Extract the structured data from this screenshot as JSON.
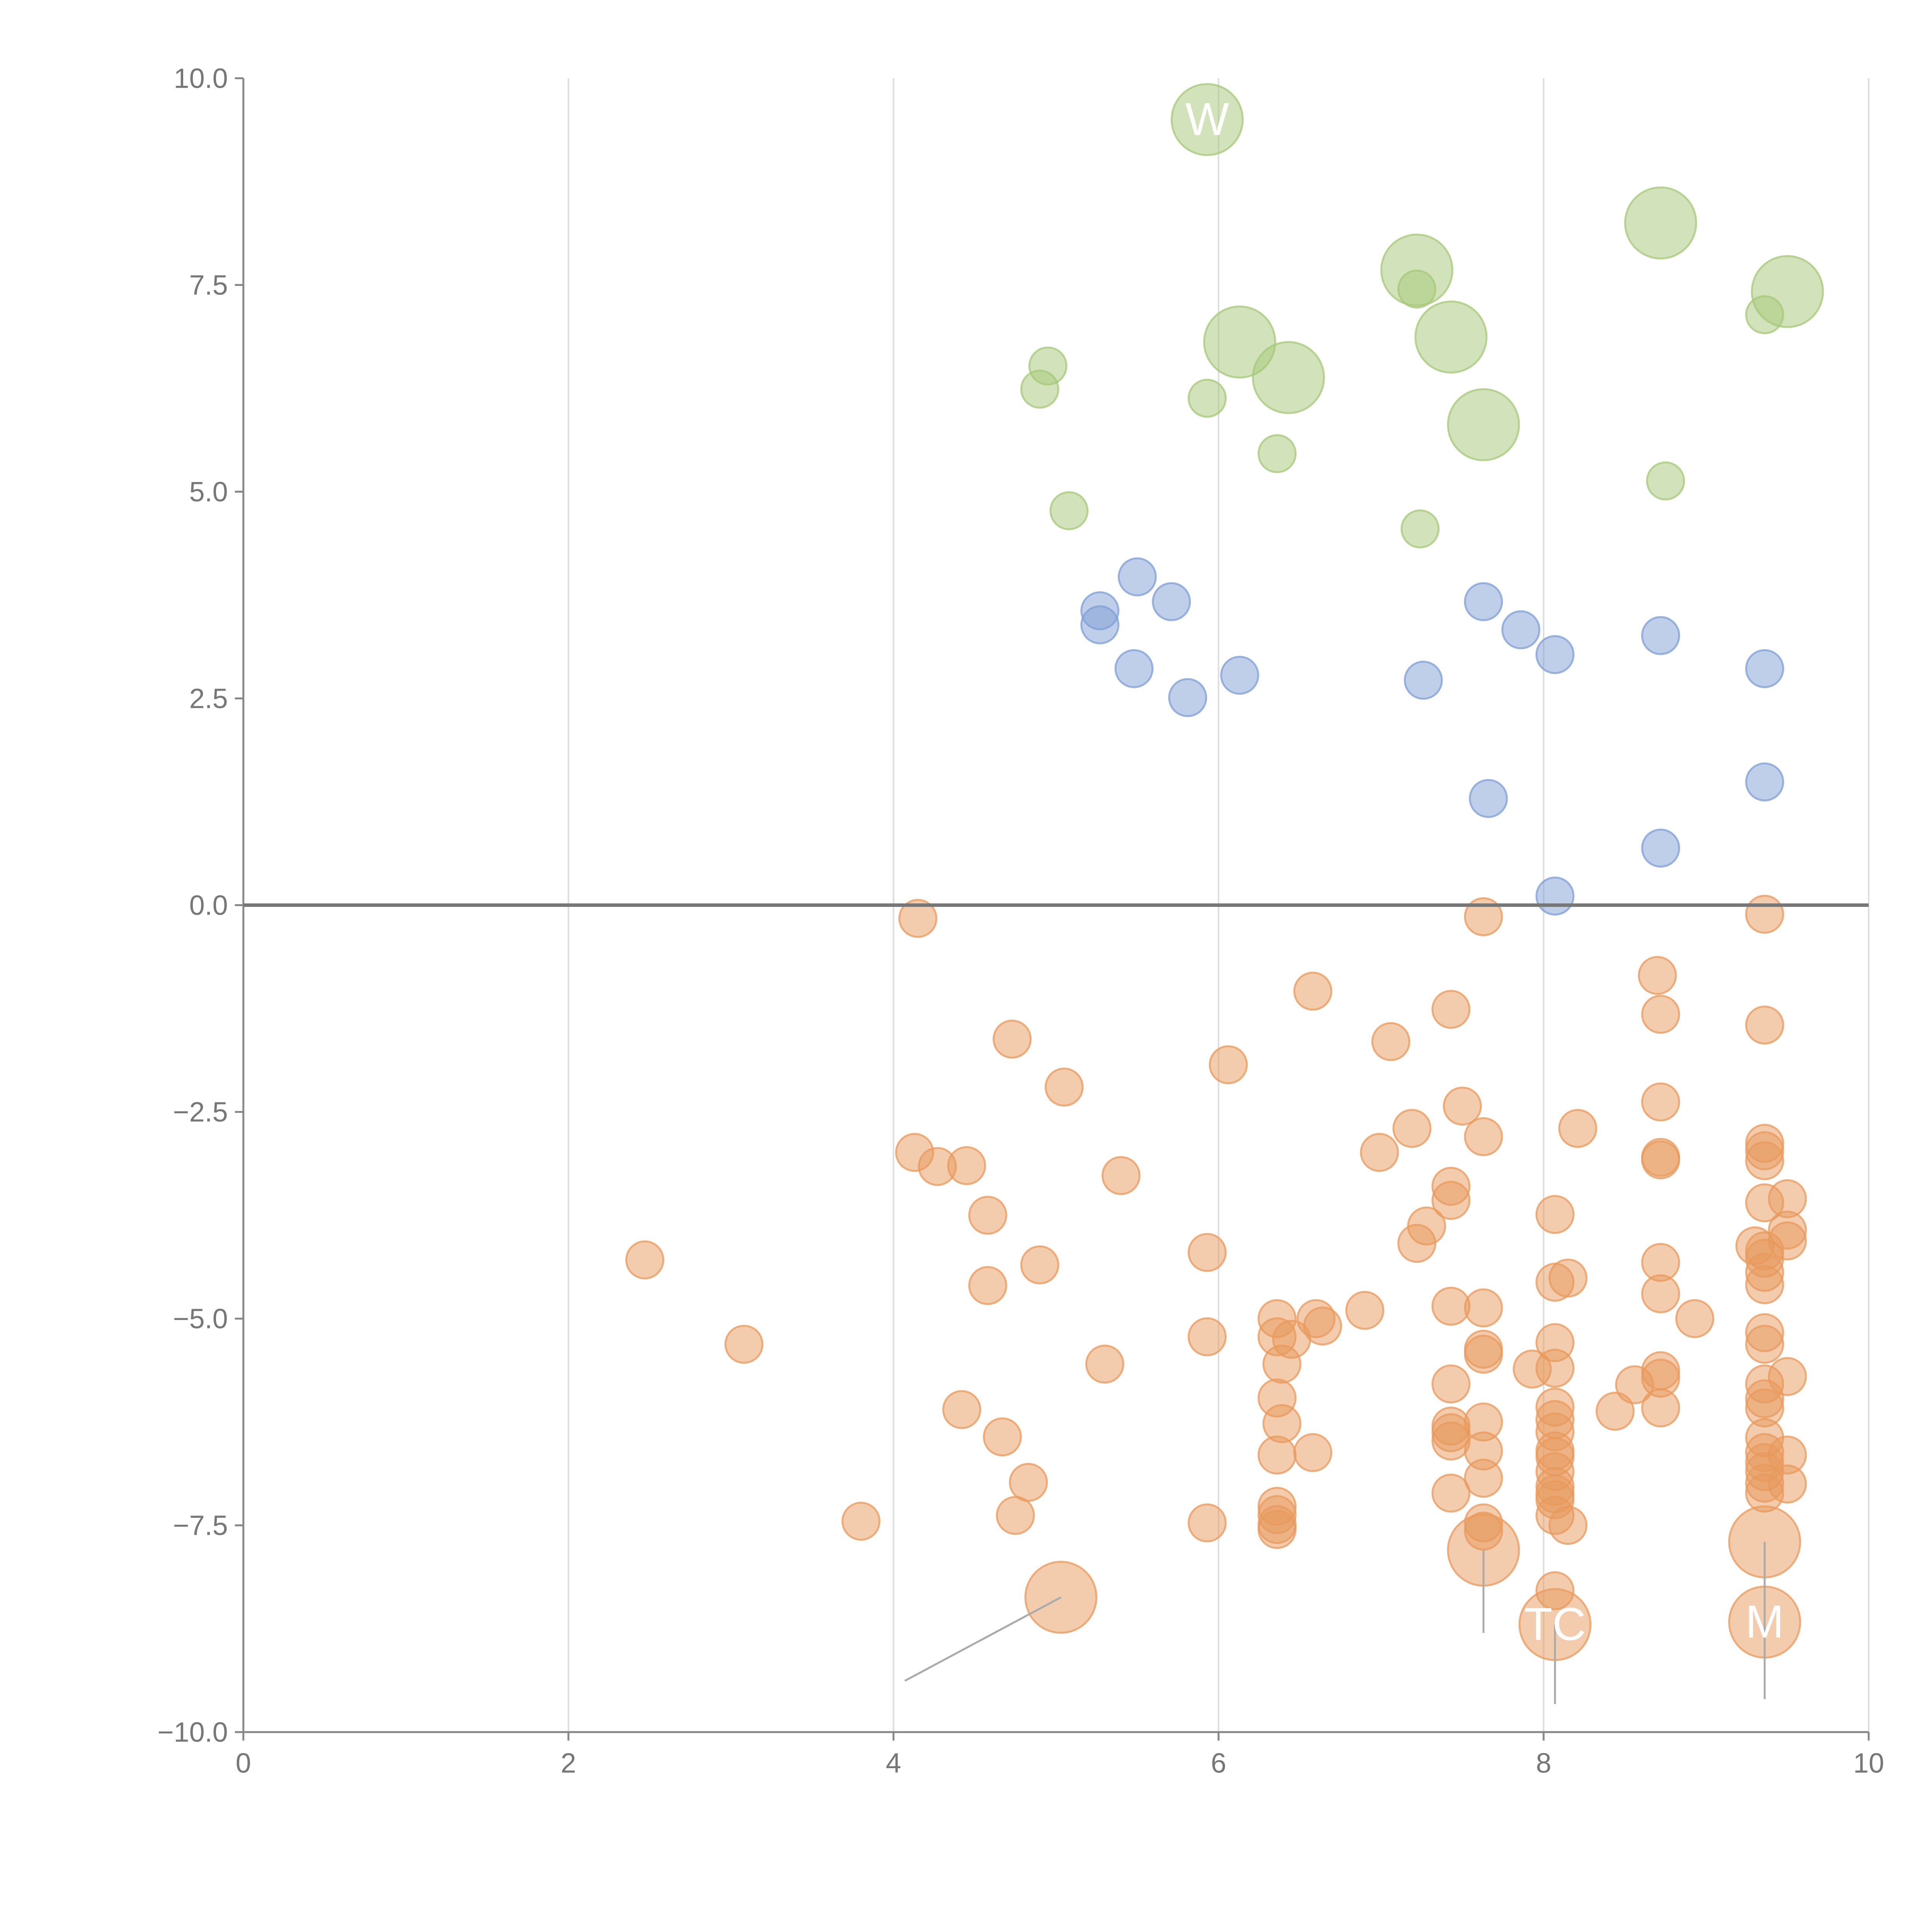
{
  "chart_data": {
    "type": "scatter",
    "title": "",
    "xlabel": "",
    "ylabel": "",
    "xlim": [
      0,
      10
    ],
    "ylim": [
      -10,
      10
    ],
    "x_ticks": [
      "0",
      "2",
      "4",
      "6",
      "8",
      "10"
    ],
    "y_ticks": [
      "-10.0",
      "-7.5",
      "-5.0",
      "-2.5",
      "0.0",
      "2.5",
      "5.0",
      "7.5",
      "10.0"
    ],
    "x_tick_values": [
      0,
      2,
      4,
      6,
      8,
      10
    ],
    "y_tick_values": [
      -10,
      -7.5,
      -5,
      -2.5,
      0,
      2.5,
      5,
      7.5,
      10
    ],
    "grid": "vertical",
    "zero_line": true,
    "colors": {
      "green": "#a6c878",
      "blue": "#7f9fd4",
      "orange": "#e89a5c"
    },
    "series": [
      {
        "color": "green",
        "points": [
          [
            5.93,
            9.5,
            "L"
          ],
          [
            7.22,
            7.68,
            "L"
          ],
          [
            8.72,
            8.25,
            "L"
          ],
          [
            9.5,
            7.42,
            "L"
          ],
          [
            6.13,
            6.81,
            "L"
          ],
          [
            6.43,
            6.38,
            "L"
          ],
          [
            7.43,
            6.87,
            "L"
          ],
          [
            7.63,
            5.81,
            "L"
          ],
          [
            4.95,
            6.52,
            "S"
          ],
          [
            4.9,
            6.24,
            "S"
          ],
          [
            5.93,
            6.13,
            "S"
          ],
          [
            7.22,
            7.45,
            "S"
          ],
          [
            9.36,
            7.14,
            "S"
          ],
          [
            6.36,
            5.46,
            "S"
          ],
          [
            8.75,
            5.13,
            "S"
          ],
          [
            5.08,
            4.77,
            "S"
          ],
          [
            7.24,
            4.55,
            "S"
          ]
        ]
      },
      {
        "color": "blue",
        "points": [
          [
            5.5,
            3.97
          ],
          [
            5.27,
            3.56
          ],
          [
            5.27,
            3.39
          ],
          [
            5.71,
            3.67
          ],
          [
            5.48,
            2.86
          ],
          [
            5.81,
            2.51
          ],
          [
            6.13,
            2.78
          ],
          [
            7.26,
            2.72
          ],
          [
            7.63,
            3.67
          ],
          [
            7.86,
            3.33
          ],
          [
            8.07,
            3.03
          ],
          [
            8.72,
            3.26
          ],
          [
            9.36,
            2.86
          ],
          [
            7.66,
            1.29
          ],
          [
            9.36,
            1.49
          ],
          [
            8.72,
            0.69
          ],
          [
            8.07,
            0.11
          ]
        ]
      },
      {
        "color": "orange",
        "points": [
          [
            4.15,
            -0.16
          ],
          [
            7.63,
            -0.14
          ],
          [
            9.36,
            -0.11
          ],
          [
            6.58,
            -1.04
          ],
          [
            7.43,
            -1.26
          ],
          [
            8.7,
            -0.85
          ],
          [
            8.72,
            -1.32
          ],
          [
            9.36,
            -1.45
          ],
          [
            4.73,
            -1.62
          ],
          [
            7.06,
            -1.65
          ],
          [
            6.06,
            -1.93
          ],
          [
            5.05,
            -2.2
          ],
          [
            7.5,
            -2.43
          ],
          [
            8.72,
            -2.38
          ],
          [
            7.19,
            -2.7
          ],
          [
            7.63,
            -2.8
          ],
          [
            8.21,
            -2.7
          ],
          [
            4.13,
            -2.99
          ],
          [
            4.27,
            -3.16
          ],
          [
            4.45,
            -3.15
          ],
          [
            6.99,
            -2.99
          ],
          [
            5.4,
            -3.27
          ],
          [
            9.36,
            -2.88
          ],
          [
            9.36,
            -2.97
          ],
          [
            9.36,
            -3.09
          ],
          [
            8.72,
            -3.05
          ],
          [
            8.72,
            -3.08
          ],
          [
            7.43,
            -3.4
          ],
          [
            7.43,
            -3.57
          ],
          [
            9.36,
            -3.6
          ],
          [
            9.5,
            -3.55
          ],
          [
            4.58,
            -3.75
          ],
          [
            8.07,
            -3.74
          ],
          [
            7.28,
            -3.88
          ],
          [
            7.22,
            -4.09
          ],
          [
            9.5,
            -3.93
          ],
          [
            9.5,
            -4.06
          ],
          [
            9.3,
            -4.12
          ],
          [
            9.36,
            -4.18
          ],
          [
            9.36,
            -4.27
          ],
          [
            9.36,
            -4.44
          ],
          [
            9.36,
            -4.59
          ],
          [
            2.47,
            -4.29
          ],
          [
            5.93,
            -4.2
          ],
          [
            4.9,
            -4.35
          ],
          [
            8.72,
            -4.32
          ],
          [
            4.58,
            -4.6
          ],
          [
            8.07,
            -4.56
          ],
          [
            8.15,
            -4.51
          ],
          [
            8.72,
            -4.7
          ],
          [
            6.36,
            -5.0
          ],
          [
            6.36,
            -5.22
          ],
          [
            6.6,
            -5.0
          ],
          [
            6.64,
            -5.09
          ],
          [
            6.45,
            -5.25
          ],
          [
            6.9,
            -4.9
          ],
          [
            7.43,
            -4.85
          ],
          [
            7.63,
            -4.87
          ],
          [
            8.93,
            -5.0
          ],
          [
            9.36,
            -5.17
          ],
          [
            9.36,
            -5.31
          ],
          [
            3.08,
            -5.31
          ],
          [
            5.93,
            -5.22
          ],
          [
            7.63,
            -5.37
          ],
          [
            7.63,
            -5.43
          ],
          [
            8.07,
            -5.29
          ],
          [
            6.39,
            -5.55
          ],
          [
            5.3,
            -5.55
          ],
          [
            7.93,
            -5.61
          ],
          [
            8.07,
            -5.6
          ],
          [
            8.72,
            -5.63
          ],
          [
            8.72,
            -5.72
          ],
          [
            8.56,
            -5.8
          ],
          [
            9.36,
            -5.79
          ],
          [
            9.5,
            -5.7
          ],
          [
            7.43,
            -5.79
          ],
          [
            4.42,
            -6.1
          ],
          [
            6.36,
            -5.96
          ],
          [
            8.72,
            -6.08
          ],
          [
            8.07,
            -6.07
          ],
          [
            8.44,
            -6.12
          ],
          [
            9.36,
            -5.97
          ],
          [
            9.36,
            -6.08
          ],
          [
            6.39,
            -6.27
          ],
          [
            7.63,
            -6.25
          ],
          [
            8.07,
            -6.22
          ],
          [
            8.07,
            -6.37
          ],
          [
            7.43,
            -6.3
          ],
          [
            7.43,
            -6.38
          ],
          [
            7.43,
            -6.48
          ],
          [
            9.36,
            -6.44
          ],
          [
            4.67,
            -6.43
          ],
          [
            7.63,
            -6.6
          ],
          [
            6.36,
            -6.65
          ],
          [
            6.58,
            -6.62
          ],
          [
            8.07,
            -6.6
          ],
          [
            8.07,
            -6.67
          ],
          [
            8.07,
            -6.85
          ],
          [
            9.36,
            -6.62
          ],
          [
            9.36,
            -6.74
          ],
          [
            9.5,
            -6.65
          ],
          [
            9.36,
            -6.85
          ],
          [
            4.83,
            -6.98
          ],
          [
            7.63,
            -6.93
          ],
          [
            8.07,
            -7.03
          ],
          [
            8.07,
            -7.12
          ],
          [
            8.07,
            -7.19
          ],
          [
            7.43,
            -7.11
          ],
          [
            9.36,
            -6.99
          ],
          [
            9.36,
            -7.11
          ],
          [
            9.5,
            -7.0
          ],
          [
            6.36,
            -7.27
          ],
          [
            6.36,
            -7.37
          ],
          [
            6.36,
            -7.49
          ],
          [
            6.36,
            -7.55
          ],
          [
            3.8,
            -7.45
          ],
          [
            4.75,
            -7.38
          ],
          [
            5.93,
            -7.47
          ],
          [
            7.63,
            -7.47
          ],
          [
            7.63,
            -7.57
          ],
          [
            8.07,
            -7.38
          ],
          [
            8.15,
            -7.5
          ],
          [
            8.07,
            -8.29
          ]
        ]
      },
      {
        "color": "orange",
        "points": [
          [
            5.03,
            -8.37,
            "L"
          ],
          [
            7.63,
            -7.8,
            "L"
          ],
          [
            8.07,
            -8.7,
            "L"
          ],
          [
            9.36,
            -7.7,
            "L"
          ],
          [
            9.36,
            -8.67,
            "L"
          ]
        ]
      }
    ],
    "annotations": [
      {
        "text": "W",
        "x": 5.93,
        "y": 9.5
      },
      {
        "text": "TC",
        "x": 8.07,
        "y": -8.7
      },
      {
        "text": "M",
        "x": 9.36,
        "y": -8.67
      }
    ]
  }
}
